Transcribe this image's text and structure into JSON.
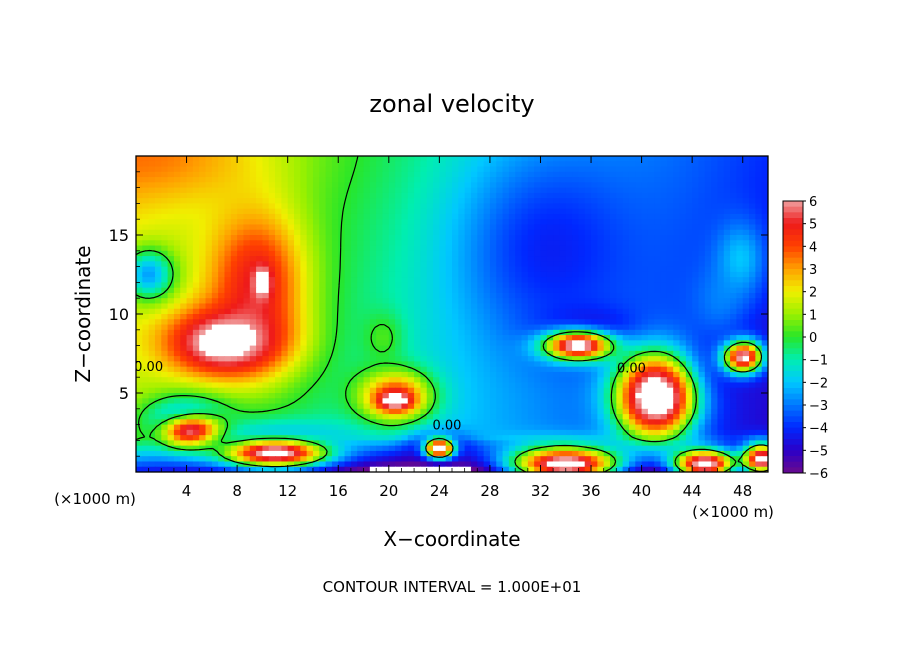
{
  "chart_data": {
    "type": "heatmap",
    "title": "zonal velocity",
    "xlabel": "X−coordinate",
    "ylabel": "Z−coordinate",
    "x_unit_left": "(×1000 m)",
    "x_unit_right": "(×1000 m)",
    "xlim": [
      0,
      50
    ],
    "ylim": [
      0,
      20
    ],
    "x_ticks": [
      "4",
      "8",
      "12",
      "16",
      "20",
      "24",
      "28",
      "32",
      "36",
      "40",
      "44",
      "48"
    ],
    "x_tick_values": [
      4,
      8,
      12,
      16,
      20,
      24,
      28,
      32,
      36,
      40,
      44,
      48
    ],
    "y_ticks": [
      "5",
      "10",
      "15"
    ],
    "y_tick_values": [
      5,
      10,
      15
    ],
    "colorbar": {
      "min": -6,
      "max": 6,
      "ticks": [
        "6",
        "5",
        "4",
        "3",
        "2",
        "1",
        "0",
        "−1",
        "−2",
        "−3",
        "−4",
        "−5",
        "−6"
      ],
      "tick_values": [
        6,
        5,
        4,
        3,
        2,
        1,
        0,
        -1,
        -2,
        -3,
        -4,
        -5,
        -6
      ],
      "stops": [
        {
          "value": -6,
          "color": "#6a0a8c"
        },
        {
          "value": -5,
          "color": "#2a00c8"
        },
        {
          "value": -4,
          "color": "#0028ff"
        },
        {
          "value": -3,
          "color": "#0078ff"
        },
        {
          "value": -2,
          "color": "#00c8ff"
        },
        {
          "value": -1,
          "color": "#00eeb0"
        },
        {
          "value": 0,
          "color": "#28e628"
        },
        {
          "value": 1,
          "color": "#9af000"
        },
        {
          "value": 2,
          "color": "#f0f000"
        },
        {
          "value": 3,
          "color": "#ffa000"
        },
        {
          "value": 4,
          "color": "#ff4000"
        },
        {
          "value": 5,
          "color": "#ee1a1a"
        },
        {
          "value": 6,
          "color": "#f0a0a0"
        }
      ],
      "over_color": "#ffffff",
      "under_color": "#ffffff"
    },
    "contour_labels": [
      {
        "text": "0.00",
        "x": 24.6,
        "z": 2.7
      },
      {
        "text": "0.00",
        "x": 39.2,
        "z": 6.3
      },
      {
        "text": "0.00",
        "x": 1.0,
        "z": 6.4
      }
    ],
    "footnote": "CONTOUR INTERVAL = 1.000E+01",
    "features": [
      {
        "kind": "blob",
        "x": 0,
        "z": 20,
        "rx": 12,
        "rz": 4,
        "value": 3.5
      },
      {
        "kind": "blob",
        "x": 9.5,
        "z": 12,
        "rx": 5,
        "rz": 6,
        "value": 5
      },
      {
        "kind": "blob",
        "x": 7,
        "z": 8.2,
        "rx": 6,
        "rz": 2.8,
        "value": 7
      },
      {
        "kind": "blob",
        "x": 10,
        "z": 12,
        "rx": 0.8,
        "rz": 1.2,
        "value": 7
      },
      {
        "kind": "blob",
        "x": 1,
        "z": 12.5,
        "rx": 2.5,
        "rz": 2,
        "value": -2.5
      },
      {
        "kind": "blob",
        "x": 33,
        "z": 14,
        "rx": 9,
        "rz": 8,
        "value": -4.2
      },
      {
        "kind": "blob",
        "x": 36,
        "z": 8.5,
        "rx": 5,
        "rz": 2,
        "value": -5.5
      },
      {
        "kind": "blob",
        "x": 35,
        "z": 8,
        "rx": 3.5,
        "rz": 1.2,
        "value": 7
      },
      {
        "kind": "blob",
        "x": 20.5,
        "z": 4.8,
        "rx": 3.5,
        "rz": 2,
        "value": 4.5
      },
      {
        "kind": "blob",
        "x": 20.5,
        "z": 4.5,
        "rx": 1.6,
        "rz": 0.7,
        "value": 7
      },
      {
        "kind": "blob",
        "x": 19.5,
        "z": 8.5,
        "rx": 2,
        "rz": 2,
        "value": 0.3
      },
      {
        "kind": "blob",
        "x": 41,
        "z": 4.8,
        "rx": 4,
        "rz": 3.5,
        "value": 5.5
      },
      {
        "kind": "blob",
        "x": 41.2,
        "z": 4.7,
        "rx": 2.8,
        "rz": 2.3,
        "value": 7
      },
      {
        "kind": "blob",
        "x": 48,
        "z": 7.3,
        "rx": 3.5,
        "rz": 2.5,
        "value": -5
      },
      {
        "kind": "blob",
        "x": 48,
        "z": 7.3,
        "rx": 2,
        "rz": 1.3,
        "value": 7
      },
      {
        "kind": "blob",
        "x": 4,
        "z": 2.8,
        "rx": 4,
        "rz": 2,
        "value": -6
      },
      {
        "kind": "blob",
        "x": 4.5,
        "z": 2.5,
        "rx": 3.5,
        "rz": 1.5,
        "value": 7
      },
      {
        "kind": "blob",
        "x": 11,
        "z": 1.3,
        "rx": 7,
        "rz": 1.8,
        "value": -6
      },
      {
        "kind": "blob",
        "x": 11,
        "z": 1.2,
        "rx": 5.5,
        "rz": 1.2,
        "value": 7
      },
      {
        "kind": "blob",
        "x": 24,
        "z": 1.5,
        "rx": 3,
        "rz": 1.2,
        "value": -6
      },
      {
        "kind": "blob",
        "x": 24,
        "z": 1.5,
        "rx": 1.5,
        "rz": 0.8,
        "value": 7
      },
      {
        "kind": "blob",
        "x": 34,
        "z": 0.5,
        "rx": 6,
        "rz": 1.5,
        "value": 7
      },
      {
        "kind": "blob",
        "x": 45,
        "z": 0.5,
        "rx": 3.5,
        "rz": 1.3,
        "value": 7
      },
      {
        "kind": "blob",
        "x": 49.5,
        "z": 0.8,
        "rx": 2,
        "rz": 1.3,
        "value": 7
      },
      {
        "kind": "blob",
        "x": 46,
        "z": 10.8,
        "rx": 3,
        "rz": 3,
        "value": -3
      },
      {
        "kind": "blob",
        "x": 47.8,
        "z": 13.5,
        "rx": 2.5,
        "rz": 3,
        "value": -2
      }
    ]
  }
}
